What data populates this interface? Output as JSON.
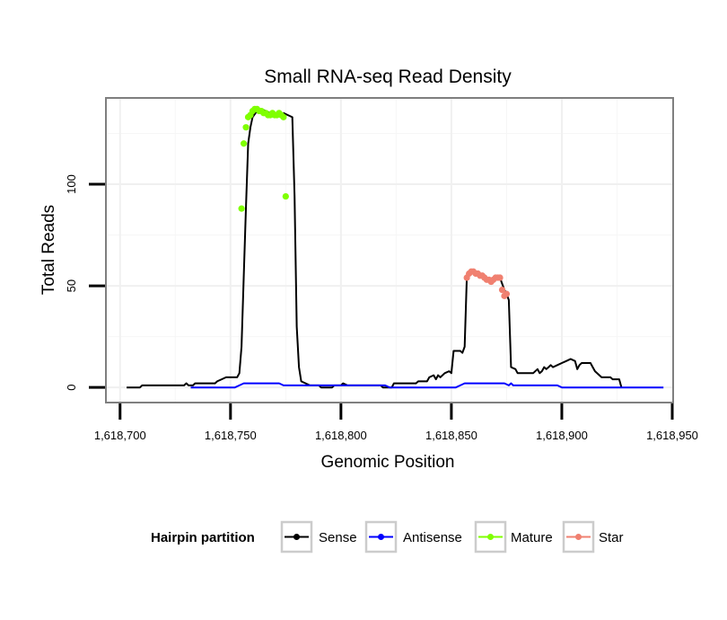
{
  "chart_data": {
    "type": "line",
    "title": "Small RNA-seq Read Density",
    "xlabel": "Genomic Position",
    "ylabel": "Total Reads",
    "xlim": [
      1618694,
      1618950
    ],
    "ylim": [
      -7,
      142
    ],
    "x_ticks": [
      1618700,
      1618750,
      1618800,
      1618850,
      1618900,
      1618950
    ],
    "x_tick_labels": [
      "1,618,700",
      "1,618,750",
      "1,618,800",
      "1,618,850",
      "1,618,900",
      "1,618,950"
    ],
    "y_ticks": [
      0,
      50,
      100
    ],
    "y_tick_labels": [
      "0",
      "50",
      "100"
    ],
    "legend": {
      "title": "Hairpin partition",
      "position": "bottom",
      "entries": [
        "Sense",
        "Antisense",
        "Mature",
        "Star"
      ]
    },
    "series": [
      {
        "name": "Sense",
        "color": "#000000",
        "style": "line",
        "points": [
          [
            1618703,
            0
          ],
          [
            1618709,
            0
          ],
          [
            1618710,
            1
          ],
          [
            1618729,
            1
          ],
          [
            1618730,
            2
          ],
          [
            1618731,
            1
          ],
          [
            1618733,
            1
          ],
          [
            1618734,
            2
          ],
          [
            1618743,
            2
          ],
          [
            1618744,
            3
          ],
          [
            1618746,
            4
          ],
          [
            1618748,
            5
          ],
          [
            1618753,
            5
          ],
          [
            1618754,
            7
          ],
          [
            1618755,
            20
          ],
          [
            1618756,
            55
          ],
          [
            1618757,
            88
          ],
          [
            1618758,
            120
          ],
          [
            1618759,
            128
          ],
          [
            1618760,
            133
          ],
          [
            1618762,
            136
          ],
          [
            1618764,
            137
          ],
          [
            1618766,
            136
          ],
          [
            1618768,
            135
          ],
          [
            1618770,
            135
          ],
          [
            1618772,
            134
          ],
          [
            1618774,
            135
          ],
          [
            1618776,
            134
          ],
          [
            1618778,
            133
          ],
          [
            1618779,
            94
          ],
          [
            1618780,
            30
          ],
          [
            1618781,
            10
          ],
          [
            1618782,
            3
          ],
          [
            1618784,
            2
          ],
          [
            1618786,
            1
          ],
          [
            1618790,
            1
          ],
          [
            1618791,
            0
          ],
          [
            1618796,
            0
          ],
          [
            1618797,
            1
          ],
          [
            1618800,
            1
          ],
          [
            1618801,
            2
          ],
          [
            1618803,
            1
          ],
          [
            1618818,
            1
          ],
          [
            1618819,
            0
          ],
          [
            1618823,
            0
          ],
          [
            1618824,
            2
          ],
          [
            1618834,
            2
          ],
          [
            1618835,
            3
          ],
          [
            1618839,
            3
          ],
          [
            1618840,
            5
          ],
          [
            1618842,
            6
          ],
          [
            1618843,
            4
          ],
          [
            1618844,
            6
          ],
          [
            1618845,
            5
          ],
          [
            1618847,
            7
          ],
          [
            1618849,
            8
          ],
          [
            1618850,
            7
          ],
          [
            1618851,
            18
          ],
          [
            1618854,
            18
          ],
          [
            1618855,
            17
          ],
          [
            1618856,
            20
          ],
          [
            1618857,
            54
          ],
          [
            1618858,
            56
          ],
          [
            1618860,
            57
          ],
          [
            1618862,
            56
          ],
          [
            1618864,
            55
          ],
          [
            1618866,
            53
          ],
          [
            1618868,
            52
          ],
          [
            1618870,
            54
          ],
          [
            1618872,
            54
          ],
          [
            1618874,
            48
          ],
          [
            1618875,
            46
          ],
          [
            1618876,
            43
          ],
          [
            1618877,
            10
          ],
          [
            1618879,
            9
          ],
          [
            1618880,
            7
          ],
          [
            1618887,
            7
          ],
          [
            1618889,
            9
          ],
          [
            1618890,
            7
          ],
          [
            1618891,
            8
          ],
          [
            1618892,
            10
          ],
          [
            1618893,
            9
          ],
          [
            1618894,
            10
          ],
          [
            1618895,
            11
          ],
          [
            1618896,
            10
          ],
          [
            1618898,
            11
          ],
          [
            1618900,
            12
          ],
          [
            1618902,
            13
          ],
          [
            1618904,
            14
          ],
          [
            1618906,
            13
          ],
          [
            1618907,
            9
          ],
          [
            1618908,
            11
          ],
          [
            1618909,
            12
          ],
          [
            1618913,
            12
          ],
          [
            1618914,
            10
          ],
          [
            1618915,
            8
          ],
          [
            1618917,
            6
          ],
          [
            1618918,
            5
          ],
          [
            1618922,
            5
          ],
          [
            1618923,
            4
          ],
          [
            1618926,
            4
          ],
          [
            1618927,
            0
          ]
        ]
      },
      {
        "name": "Antisense",
        "color": "#0000ff",
        "style": "line",
        "points": [
          [
            1618732,
            0
          ],
          [
            1618752,
            0
          ],
          [
            1618754,
            1
          ],
          [
            1618756,
            2
          ],
          [
            1618772,
            2
          ],
          [
            1618774,
            1
          ],
          [
            1618820,
            1
          ],
          [
            1618822,
            0
          ],
          [
            1618852,
            0
          ],
          [
            1618854,
            1
          ],
          [
            1618856,
            2
          ],
          [
            1618874,
            2
          ],
          [
            1618876,
            1
          ],
          [
            1618877,
            2
          ],
          [
            1618878,
            1
          ],
          [
            1618898,
            1
          ],
          [
            1618900,
            0
          ],
          [
            1618946,
            0
          ]
        ]
      },
      {
        "name": "Mature",
        "color": "#7fff00",
        "style": "points",
        "points": [
          [
            1618755,
            88
          ],
          [
            1618756,
            120
          ],
          [
            1618757,
            128
          ],
          [
            1618758,
            133
          ],
          [
            1618759,
            134
          ],
          [
            1618760,
            136
          ],
          [
            1618761,
            137
          ],
          [
            1618762,
            137
          ],
          [
            1618763,
            136
          ],
          [
            1618764,
            136
          ],
          [
            1618765,
            135
          ],
          [
            1618766,
            135
          ],
          [
            1618767,
            134
          ],
          [
            1618768,
            134
          ],
          [
            1618769,
            135
          ],
          [
            1618770,
            134
          ],
          [
            1618771,
            134
          ],
          [
            1618772,
            135
          ],
          [
            1618773,
            134
          ],
          [
            1618774,
            133
          ],
          [
            1618775,
            94
          ]
        ]
      },
      {
        "name": "Star",
        "color": "#f08070",
        "style": "points",
        "points": [
          [
            1618857,
            54
          ],
          [
            1618858,
            56
          ],
          [
            1618859,
            57
          ],
          [
            1618860,
            57
          ],
          [
            1618861,
            56
          ],
          [
            1618862,
            56
          ],
          [
            1618863,
            55
          ],
          [
            1618864,
            55
          ],
          [
            1618865,
            54
          ],
          [
            1618866,
            53
          ],
          [
            1618867,
            53
          ],
          [
            1618868,
            52
          ],
          [
            1618869,
            53
          ],
          [
            1618870,
            54
          ],
          [
            1618871,
            54
          ],
          [
            1618872,
            54
          ],
          [
            1618873,
            48
          ],
          [
            1618874,
            45
          ],
          [
            1618875,
            46
          ]
        ]
      }
    ]
  }
}
